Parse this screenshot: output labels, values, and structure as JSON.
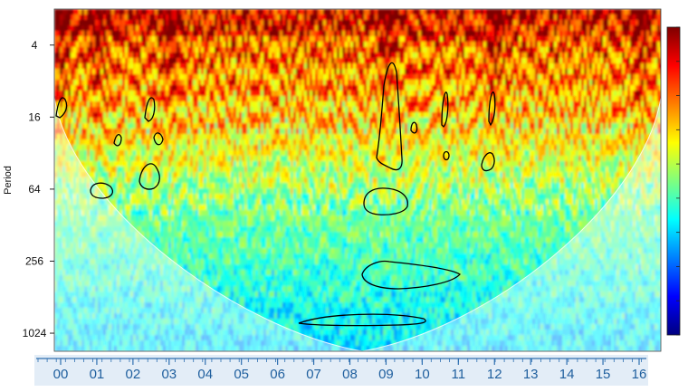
{
  "chart_data": {
    "type": "heatmap",
    "title": "",
    "xlabel": "",
    "ylabel": "Period",
    "x_tick_labels": [
      "00",
      "01",
      "02",
      "03",
      "04",
      "05",
      "06",
      "07",
      "08",
      "09",
      "10",
      "11",
      "12",
      "13",
      "14",
      "15",
      "16"
    ],
    "y_scale": "log2",
    "y_tick_values": [
      4,
      16,
      64,
      256,
      1024
    ],
    "y_tick_labels": [
      "4",
      "16",
      "64",
      "256",
      "1024"
    ],
    "ylim": [
      2,
      1450
    ],
    "y_reversed": true,
    "colorscale": [
      "#00007f",
      "#0000ff",
      "#007fff",
      "#00ffff",
      "#7fff7f",
      "#ffff00",
      "#ff7f00",
      "#ff0000",
      "#7f0000"
    ],
    "colorbar": "right, no tick labels",
    "cone_of_influence": true,
    "significance_contours": true,
    "high_power_columns_at": [
      "00",
      "01",
      "03",
      "09",
      "12",
      "16"
    ]
  }
}
